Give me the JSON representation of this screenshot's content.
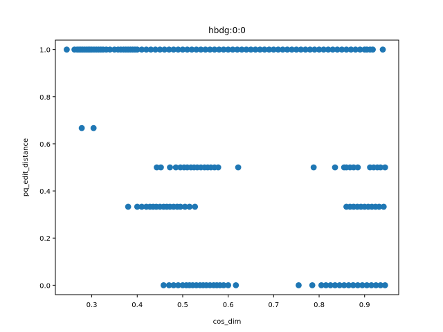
{
  "chart_data": {
    "type": "scatter",
    "title": "hbdg:0:0",
    "xlabel": "cos_dim",
    "ylabel": "pq_edit_distance",
    "xlim": [
      0.22,
      0.975
    ],
    "ylim": [
      -0.04,
      1.04
    ],
    "xticks": [
      0.3,
      0.4,
      0.5,
      0.6,
      0.7,
      0.8,
      0.9
    ],
    "xtick_labels": [
      "0.3",
      "0.4",
      "0.5",
      "0.6",
      "0.7",
      "0.8",
      "0.9"
    ],
    "yticks": [
      0.0,
      0.2,
      0.4,
      0.6,
      0.8,
      1.0
    ],
    "ytick_labels": [
      "0.0",
      "0.2",
      "0.4",
      "0.6",
      "0.8",
      "1.0"
    ],
    "grid": false,
    "marker_color": "#1f77b4",
    "series": [
      {
        "x": [
          0.245,
          0.262,
          0.268,
          0.272,
          0.276,
          0.28,
          0.284,
          0.288,
          0.292,
          0.296,
          0.3,
          0.305,
          0.31,
          0.315,
          0.32,
          0.325,
          0.332,
          0.34,
          0.35,
          0.358,
          0.364,
          0.37,
          0.375,
          0.38,
          0.385,
          0.39,
          0.395,
          0.4,
          0.41,
          0.42,
          0.43,
          0.44,
          0.45,
          0.46,
          0.47,
          0.48,
          0.49,
          0.5,
          0.51,
          0.52,
          0.53,
          0.54,
          0.55,
          0.56,
          0.57,
          0.58,
          0.59,
          0.6,
          0.61,
          0.62,
          0.63,
          0.64,
          0.65,
          0.66,
          0.67,
          0.68,
          0.69,
          0.7,
          0.71,
          0.72,
          0.73,
          0.74,
          0.75,
          0.76,
          0.77,
          0.78,
          0.79,
          0.8,
          0.81,
          0.82,
          0.83,
          0.84,
          0.85,
          0.86,
          0.87,
          0.88,
          0.89,
          0.9,
          0.905,
          0.912,
          0.918,
          0.94,
          0.278,
          0.304,
          0.443,
          0.452,
          0.472,
          0.485,
          0.495,
          0.503,
          0.51,
          0.518,
          0.525,
          0.532,
          0.54,
          0.548,
          0.555,
          0.562,
          0.57,
          0.578,
          0.622,
          0.788,
          0.835,
          0.855,
          0.86,
          0.868,
          0.876,
          0.885,
          0.912,
          0.92,
          0.928,
          0.935,
          0.945,
          0.38,
          0.4,
          0.41,
          0.42,
          0.428,
          0.435,
          0.442,
          0.45,
          0.458,
          0.465,
          0.472,
          0.48,
          0.488,
          0.495,
          0.505,
          0.515,
          0.527,
          0.86,
          0.868,
          0.876,
          0.884,
          0.892,
          0.9,
          0.908,
          0.916,
          0.924,
          0.932,
          0.942,
          0.458,
          0.47,
          0.48,
          0.49,
          0.5,
          0.508,
          0.515,
          0.522,
          0.53,
          0.538,
          0.545,
          0.552,
          0.56,
          0.568,
          0.575,
          0.582,
          0.59,
          0.6,
          0.617,
          0.755,
          0.785,
          0.805,
          0.815,
          0.825,
          0.835,
          0.845,
          0.855,
          0.865,
          0.875,
          0.885,
          0.895,
          0.905,
          0.915,
          0.925,
          0.935,
          0.945
        ],
        "y": [
          1.0,
          1.0,
          1.0,
          1.0,
          1.0,
          1.0,
          1.0,
          1.0,
          1.0,
          1.0,
          1.0,
          1.0,
          1.0,
          1.0,
          1.0,
          1.0,
          1.0,
          1.0,
          1.0,
          1.0,
          1.0,
          1.0,
          1.0,
          1.0,
          1.0,
          1.0,
          1.0,
          1.0,
          1.0,
          1.0,
          1.0,
          1.0,
          1.0,
          1.0,
          1.0,
          1.0,
          1.0,
          1.0,
          1.0,
          1.0,
          1.0,
          1.0,
          1.0,
          1.0,
          1.0,
          1.0,
          1.0,
          1.0,
          1.0,
          1.0,
          1.0,
          1.0,
          1.0,
          1.0,
          1.0,
          1.0,
          1.0,
          1.0,
          1.0,
          1.0,
          1.0,
          1.0,
          1.0,
          1.0,
          1.0,
          1.0,
          1.0,
          1.0,
          1.0,
          1.0,
          1.0,
          1.0,
          1.0,
          1.0,
          1.0,
          1.0,
          1.0,
          1.0,
          1.0,
          1.0,
          1.0,
          1.0,
          0.667,
          0.667,
          0.5,
          0.5,
          0.5,
          0.5,
          0.5,
          0.5,
          0.5,
          0.5,
          0.5,
          0.5,
          0.5,
          0.5,
          0.5,
          0.5,
          0.5,
          0.5,
          0.5,
          0.5,
          0.5,
          0.5,
          0.5,
          0.5,
          0.5,
          0.5,
          0.5,
          0.5,
          0.5,
          0.5,
          0.5,
          0.333,
          0.333,
          0.333,
          0.333,
          0.333,
          0.333,
          0.333,
          0.333,
          0.333,
          0.333,
          0.333,
          0.333,
          0.333,
          0.333,
          0.333,
          0.333,
          0.333,
          0.333,
          0.333,
          0.333,
          0.333,
          0.333,
          0.333,
          0.333,
          0.333,
          0.333,
          0.333,
          0.333,
          0.0,
          0.0,
          0.0,
          0.0,
          0.0,
          0.0,
          0.0,
          0.0,
          0.0,
          0.0,
          0.0,
          0.0,
          0.0,
          0.0,
          0.0,
          0.0,
          0.0,
          0.0,
          0.0,
          0.0,
          0.0,
          0.0,
          0.0,
          0.0,
          0.0,
          0.0,
          0.0,
          0.0,
          0.0,
          0.0,
          0.0,
          0.0,
          0.0,
          0.0,
          0.0,
          0.0
        ]
      }
    ]
  }
}
